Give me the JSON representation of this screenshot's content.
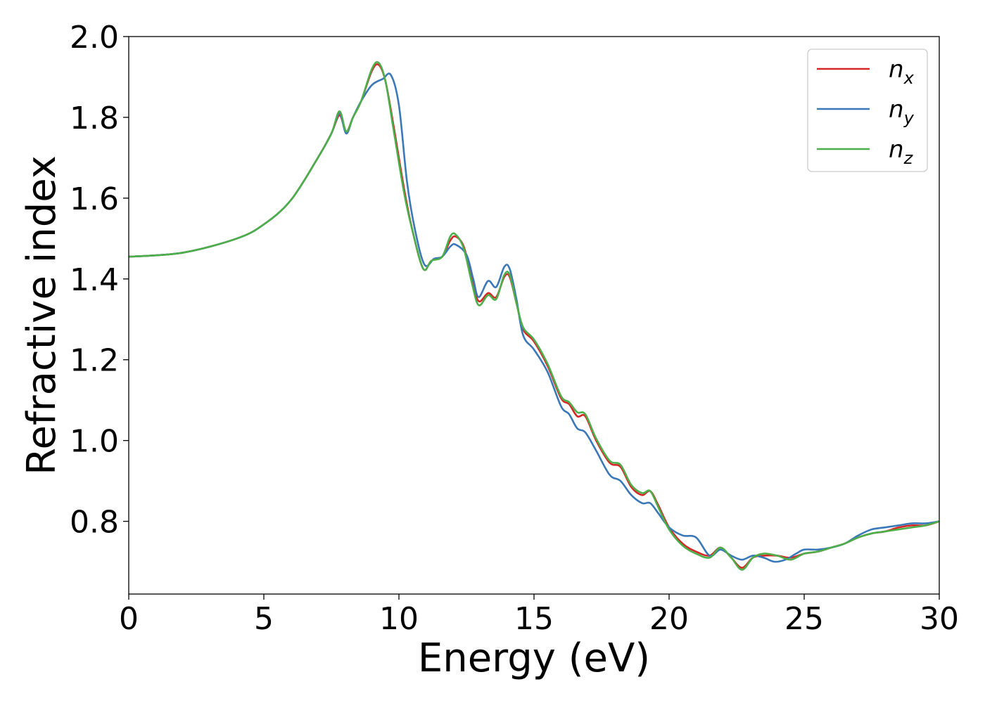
{
  "chart_data": {
    "type": "line",
    "title": "",
    "xlabel": "Energy (eV)",
    "ylabel": "Refractive index",
    "xlim": [
      0,
      30
    ],
    "ylim": [
      0.62,
      2.0
    ],
    "xticks": [
      "0",
      "5",
      "10",
      "15",
      "20",
      "25",
      "30"
    ],
    "yticks": [
      "0.8",
      "1.0",
      "1.2",
      "1.4",
      "1.6",
      "1.8",
      "2.0"
    ],
    "grid": false,
    "legend_position": "top-right",
    "series": [
      {
        "name": "n",
        "sub": "x",
        "color": "#d62728",
        "points": [
          [
            0,
            1.455
          ],
          [
            2,
            1.465
          ],
          [
            4,
            1.5
          ],
          [
            5,
            1.535
          ],
          [
            6,
            1.595
          ],
          [
            7,
            1.7
          ],
          [
            7.5,
            1.76
          ],
          [
            7.8,
            1.805
          ],
          [
            8.05,
            1.765
          ],
          [
            8.3,
            1.8
          ],
          [
            8.6,
            1.84
          ],
          [
            9.0,
            1.915
          ],
          [
            9.25,
            1.93
          ],
          [
            9.5,
            1.89
          ],
          [
            9.8,
            1.78
          ],
          [
            10.2,
            1.62
          ],
          [
            10.5,
            1.52
          ],
          [
            10.9,
            1.425
          ],
          [
            11.2,
            1.445
          ],
          [
            11.6,
            1.455
          ],
          [
            11.9,
            1.495
          ],
          [
            12.1,
            1.505
          ],
          [
            12.4,
            1.48
          ],
          [
            12.7,
            1.4
          ],
          [
            12.95,
            1.345
          ],
          [
            13.3,
            1.365
          ],
          [
            13.6,
            1.355
          ],
          [
            13.9,
            1.405
          ],
          [
            14.1,
            1.405
          ],
          [
            14.35,
            1.34
          ],
          [
            14.6,
            1.275
          ],
          [
            15.0,
            1.245
          ],
          [
            15.5,
            1.185
          ],
          [
            16.0,
            1.105
          ],
          [
            16.3,
            1.09
          ],
          [
            16.6,
            1.06
          ],
          [
            16.9,
            1.06
          ],
          [
            17.3,
            1.0
          ],
          [
            17.8,
            0.945
          ],
          [
            18.2,
            0.935
          ],
          [
            18.6,
            0.885
          ],
          [
            19.0,
            0.865
          ],
          [
            19.3,
            0.875
          ],
          [
            19.6,
            0.84
          ],
          [
            20.0,
            0.785
          ],
          [
            20.5,
            0.745
          ],
          [
            21.0,
            0.725
          ],
          [
            21.5,
            0.715
          ],
          [
            21.9,
            0.735
          ],
          [
            22.3,
            0.71
          ],
          [
            22.7,
            0.685
          ],
          [
            23.1,
            0.71
          ],
          [
            23.5,
            0.715
          ],
          [
            24.0,
            0.715
          ],
          [
            24.5,
            0.71
          ],
          [
            25.0,
            0.72
          ],
          [
            25.5,
            0.725
          ],
          [
            26.0,
            0.735
          ],
          [
            26.5,
            0.745
          ],
          [
            27.0,
            0.76
          ],
          [
            27.5,
            0.77
          ],
          [
            28.0,
            0.775
          ],
          [
            28.5,
            0.785
          ],
          [
            29.0,
            0.79
          ],
          [
            29.5,
            0.79
          ],
          [
            30,
            0.8
          ]
        ]
      },
      {
        "name": "n",
        "sub": "y",
        "color": "#3a78b8",
        "points": [
          [
            0,
            1.455
          ],
          [
            2,
            1.465
          ],
          [
            4,
            1.5
          ],
          [
            5,
            1.535
          ],
          [
            6,
            1.595
          ],
          [
            7,
            1.7
          ],
          [
            7.5,
            1.76
          ],
          [
            7.8,
            1.81
          ],
          [
            8.05,
            1.76
          ],
          [
            8.3,
            1.8
          ],
          [
            8.6,
            1.84
          ],
          [
            9.0,
            1.88
          ],
          [
            9.4,
            1.895
          ],
          [
            9.7,
            1.905
          ],
          [
            10.0,
            1.83
          ],
          [
            10.3,
            1.64
          ],
          [
            10.6,
            1.52
          ],
          [
            10.95,
            1.435
          ],
          [
            11.3,
            1.45
          ],
          [
            11.6,
            1.455
          ],
          [
            11.9,
            1.48
          ],
          [
            12.1,
            1.485
          ],
          [
            12.5,
            1.46
          ],
          [
            12.75,
            1.4
          ],
          [
            12.95,
            1.355
          ],
          [
            13.3,
            1.395
          ],
          [
            13.6,
            1.38
          ],
          [
            13.9,
            1.43
          ],
          [
            14.1,
            1.425
          ],
          [
            14.35,
            1.35
          ],
          [
            14.6,
            1.26
          ],
          [
            15.0,
            1.225
          ],
          [
            15.5,
            1.17
          ],
          [
            16.0,
            1.085
          ],
          [
            16.3,
            1.065
          ],
          [
            16.6,
            1.03
          ],
          [
            16.9,
            1.02
          ],
          [
            17.3,
            0.975
          ],
          [
            17.8,
            0.915
          ],
          [
            18.2,
            0.9
          ],
          [
            18.6,
            0.865
          ],
          [
            19.0,
            0.845
          ],
          [
            19.3,
            0.845
          ],
          [
            19.6,
            0.82
          ],
          [
            20.0,
            0.785
          ],
          [
            20.5,
            0.765
          ],
          [
            21.0,
            0.76
          ],
          [
            21.5,
            0.715
          ],
          [
            21.9,
            0.73
          ],
          [
            22.3,
            0.715
          ],
          [
            22.7,
            0.705
          ],
          [
            23.1,
            0.715
          ],
          [
            23.5,
            0.71
          ],
          [
            23.9,
            0.7
          ],
          [
            24.3,
            0.705
          ],
          [
            24.7,
            0.72
          ],
          [
            25.0,
            0.73
          ],
          [
            25.5,
            0.73
          ],
          [
            26.0,
            0.735
          ],
          [
            26.5,
            0.745
          ],
          [
            27.0,
            0.765
          ],
          [
            27.5,
            0.78
          ],
          [
            28.0,
            0.785
          ],
          [
            28.5,
            0.79
          ],
          [
            29.0,
            0.795
          ],
          [
            29.5,
            0.795
          ],
          [
            30,
            0.8
          ]
        ]
      },
      {
        "name": "n",
        "sub": "z",
        "color": "#4daf4a",
        "points": [
          [
            0,
            1.455
          ],
          [
            2,
            1.465
          ],
          [
            4,
            1.5
          ],
          [
            5,
            1.535
          ],
          [
            6,
            1.595
          ],
          [
            7,
            1.7
          ],
          [
            7.5,
            1.76
          ],
          [
            7.8,
            1.815
          ],
          [
            8.05,
            1.765
          ],
          [
            8.3,
            1.8
          ],
          [
            8.6,
            1.84
          ],
          [
            9.0,
            1.92
          ],
          [
            9.25,
            1.935
          ],
          [
            9.5,
            1.89
          ],
          [
            9.8,
            1.77
          ],
          [
            10.2,
            1.61
          ],
          [
            10.5,
            1.52
          ],
          [
            10.9,
            1.425
          ],
          [
            11.2,
            1.445
          ],
          [
            11.6,
            1.455
          ],
          [
            11.9,
            1.505
          ],
          [
            12.1,
            1.51
          ],
          [
            12.4,
            1.475
          ],
          [
            12.7,
            1.39
          ],
          [
            12.95,
            1.335
          ],
          [
            13.3,
            1.36
          ],
          [
            13.6,
            1.35
          ],
          [
            13.9,
            1.41
          ],
          [
            14.1,
            1.41
          ],
          [
            14.35,
            1.34
          ],
          [
            14.6,
            1.28
          ],
          [
            15.0,
            1.25
          ],
          [
            15.5,
            1.19
          ],
          [
            16.0,
            1.11
          ],
          [
            16.3,
            1.095
          ],
          [
            16.6,
            1.07
          ],
          [
            16.9,
            1.065
          ],
          [
            17.3,
            1.005
          ],
          [
            17.8,
            0.95
          ],
          [
            18.2,
            0.94
          ],
          [
            18.6,
            0.89
          ],
          [
            19.0,
            0.87
          ],
          [
            19.3,
            0.875
          ],
          [
            19.6,
            0.835
          ],
          [
            20.0,
            0.78
          ],
          [
            20.5,
            0.74
          ],
          [
            21.0,
            0.72
          ],
          [
            21.5,
            0.71
          ],
          [
            21.9,
            0.735
          ],
          [
            22.3,
            0.71
          ],
          [
            22.7,
            0.68
          ],
          [
            23.1,
            0.71
          ],
          [
            23.5,
            0.72
          ],
          [
            24.0,
            0.715
          ],
          [
            24.5,
            0.705
          ],
          [
            25.0,
            0.72
          ],
          [
            25.5,
            0.725
          ],
          [
            26.0,
            0.735
          ],
          [
            26.5,
            0.745
          ],
          [
            27.0,
            0.76
          ],
          [
            27.5,
            0.77
          ],
          [
            28.0,
            0.775
          ],
          [
            28.5,
            0.78
          ],
          [
            29.0,
            0.785
          ],
          [
            29.5,
            0.79
          ],
          [
            30,
            0.8
          ]
        ]
      }
    ]
  }
}
